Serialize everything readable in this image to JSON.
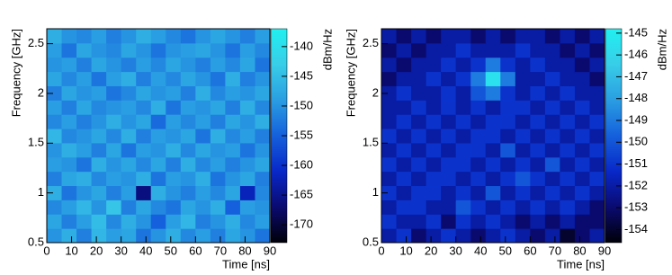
{
  "chart_data": [
    {
      "type": "heatmap",
      "x_label": "Time [ns]",
      "y_label": "Frequency [GHz]",
      "z_label": "dBm/Hz",
      "xlim": [
        0,
        90
      ],
      "xticks": [
        0,
        10,
        20,
        30,
        40,
        50,
        60,
        70,
        80,
        90
      ],
      "ylim": [
        0.5,
        2.65
      ],
      "yticks": [
        0.5,
        1,
        1.5,
        2,
        2.5
      ],
      "zlim": [
        -173,
        -137
      ],
      "zticks": [
        -140,
        -145,
        -150,
        -155,
        -160,
        -165,
        -170
      ],
      "colormap": [
        "#000008",
        "#0a0a70",
        "#0828c8",
        "#1560dc",
        "#2a9ee2",
        "#38cde8",
        "#20f0f0"
      ],
      "values": [
        [
          -150,
          -147,
          -152,
          -146,
          -149,
          -148,
          -153,
          -150,
          -147,
          -151,
          -149,
          -152,
          -148,
          -150,
          -153
        ],
        [
          -148,
          -152,
          -149,
          -145,
          -151,
          -147,
          -150,
          -155,
          -149,
          -146,
          -152,
          -150,
          -147,
          -151,
          -149
        ],
        [
          -151,
          -149,
          -146,
          -150,
          -144,
          -152,
          -148,
          -151,
          -153,
          -148,
          -150,
          -147,
          -155,
          -149,
          -150
        ],
        [
          -147,
          -153,
          -150,
          -148,
          -152,
          -149,
          -166,
          -147,
          -150,
          -152,
          -149,
          -151,
          -148,
          -162,
          -151
        ],
        [
          -152,
          -148,
          -147,
          -151,
          -149,
          -150,
          -147,
          -153,
          -149,
          -150,
          -147,
          -153,
          -150,
          -148,
          -152
        ],
        [
          -149,
          -150,
          -153,
          -147,
          -150,
          -148,
          -151,
          -148,
          -152,
          -147,
          -151,
          -149,
          -152,
          -150,
          -148
        ],
        [
          -150,
          -147,
          -149,
          -152,
          -148,
          -153,
          -149,
          -150,
          -147,
          -151,
          -148,
          -150,
          -149,
          -153,
          -150
        ],
        [
          -146,
          -151,
          -150,
          -148,
          -151,
          -147,
          -152,
          -149,
          -150,
          -148,
          -153,
          -147,
          -151,
          -149,
          -152
        ],
        [
          -151,
          -149,
          -152,
          -150,
          -147,
          -150,
          -148,
          -154,
          -149,
          -151,
          -149,
          -152,
          -148,
          -150,
          -147
        ],
        [
          -149,
          -152,
          -148,
          -151,
          -150,
          -149,
          -151,
          -147,
          -153,
          -149,
          -150,
          -148,
          -152,
          -147,
          -151
        ],
        [
          -152,
          -148,
          -150,
          -149,
          -153,
          -151,
          -148,
          -150,
          -149,
          -152,
          -147,
          -151,
          -149,
          -150,
          -148
        ],
        [
          -148,
          -151,
          -149,
          -153,
          -149,
          -147,
          -152,
          -149,
          -151,
          -148,
          -150,
          -153,
          -147,
          -152,
          -150
        ],
        [
          -150,
          -149,
          -152,
          -148,
          -150,
          -152,
          -149,
          -151,
          -148,
          -150,
          -152,
          -149,
          -151,
          -148,
          -153
        ],
        [
          -149,
          -153,
          -148,
          -150,
          -151,
          -148,
          -150,
          -153,
          -150,
          -149,
          -148,
          -150,
          -153,
          -149,
          -151
        ],
        [
          -147,
          -150,
          -151,
          -149,
          -152,
          -150,
          -147,
          -149,
          -151,
          -153,
          -150,
          -148,
          -150,
          -152,
          -149
        ]
      ]
    },
    {
      "type": "heatmap",
      "x_label": "Time [ns]",
      "y_label": "Frequency [GHz]",
      "z_label": "dBm/Hz",
      "xlim": [
        0,
        90
      ],
      "xticks": [
        0,
        10,
        20,
        30,
        40,
        50,
        60,
        70,
        80,
        90
      ],
      "ylim": [
        0.5,
        2.65
      ],
      "yticks": [
        0.5,
        1,
        1.5,
        2,
        2.5
      ],
      "zlim": [
        -154.6,
        -144.8
      ],
      "zticks": [
        -145,
        -146,
        -147,
        -148,
        -149,
        -150,
        -151,
        -152,
        -153,
        -154
      ],
      "colormap": [
        "#000008",
        "#0a0a70",
        "#0828c8",
        "#1560dc",
        "#2a9ee2",
        "#38cde8",
        "#20f0f0"
      ],
      "values": [
        [
          -152,
          -151,
          -153,
          -152,
          -151,
          -152,
          -153,
          -152,
          -151,
          -152,
          -153,
          -152,
          -154,
          -153,
          -152
        ],
        [
          -151,
          -152,
          -152,
          -151,
          -153,
          -151,
          -152,
          -151,
          -152,
          -153,
          -152,
          -153,
          -152,
          -153,
          -153
        ],
        [
          -152,
          -151,
          -151,
          -152,
          -152,
          -150,
          -151,
          -152,
          -151,
          -152,
          -151,
          -152,
          -151,
          -152,
          -153
        ],
        [
          -151,
          -152,
          -151,
          -151,
          -152,
          -151,
          -152,
          -150,
          -152,
          -151,
          -152,
          -151,
          -152,
          -151,
          -152
        ],
        [
          -152,
          -151,
          -152,
          -151,
          -151,
          -152,
          -151,
          -152,
          -151,
          -150,
          -151,
          -152,
          -151,
          -152,
          -151
        ],
        [
          -151,
          -152,
          -151,
          -152,
          -151,
          -151,
          -152,
          -151,
          -152,
          -151,
          -152,
          -150,
          -152,
          -151,
          -152
        ],
        [
          -152,
          -151,
          -152,
          -151,
          -152,
          -151,
          -151,
          -152,
          -150,
          -152,
          -151,
          -152,
          -151,
          -152,
          -151
        ],
        [
          -151,
          -152,
          -151,
          -152,
          -151,
          -152,
          -151,
          -151,
          -152,
          -151,
          -152,
          -151,
          -152,
          -151,
          -152
        ],
        [
          -152,
          -151,
          -152,
          -151,
          -152,
          -151,
          -152,
          -151,
          -151,
          -152,
          -151,
          -152,
          -151,
          -152,
          -151
        ],
        [
          -152,
          -152,
          -151,
          -152,
          -151,
          -152,
          -151,
          -152,
          -151,
          -151,
          -152,
          -151,
          -152,
          -151,
          -152
        ],
        [
          -152,
          -151,
          -152,
          -152,
          -151,
          -152,
          -150,
          -149,
          -151,
          -152,
          -151,
          -152,
          -151,
          -152,
          -152
        ],
        [
          -153,
          -152,
          -152,
          -151,
          -152,
          -151,
          -149,
          -145.5,
          -149,
          -152,
          -152,
          -151,
          -152,
          -152,
          -153
        ],
        [
          -152,
          -153,
          -152,
          -152,
          -151,
          -152,
          -151,
          -149,
          -151,
          -152,
          -151,
          -152,
          -152,
          -153,
          -152
        ],
        [
          -153,
          -152,
          -153,
          -152,
          -152,
          -151,
          -152,
          -152,
          -152,
          -151,
          -152,
          -152,
          -153,
          -152,
          -153
        ],
        [
          -152,
          -153,
          -152,
          -153,
          -152,
          -152,
          -153,
          -152,
          -153,
          -152,
          -152,
          -153,
          -152,
          -153,
          -152
        ]
      ]
    }
  ]
}
